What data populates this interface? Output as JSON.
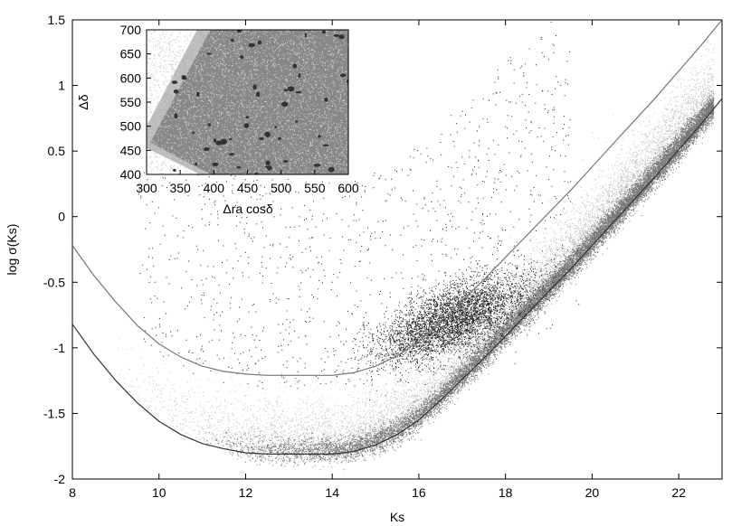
{
  "chart_data": [
    {
      "type": "scatter",
      "xlabel": "Ks",
      "ylabel": "log σ(Ks)",
      "xlim": [
        8,
        23
      ],
      "ylim": [
        -2,
        1.5
      ],
      "x_ticks": [
        8,
        10,
        12,
        14,
        16,
        18,
        20,
        22
      ],
      "y_ticks": [
        -2,
        -1.5,
        -1,
        -0.5,
        0,
        0.5,
        1,
        1.5
      ],
      "x_tick_labels": [
        "8",
        "10",
        "12",
        "14",
        "16",
        "18",
        "20",
        "22"
      ],
      "y_tick_labels": [
        "-2",
        "-1.5",
        "-1",
        "-0.5",
        "0",
        "0.5",
        "1",
        "1.5"
      ],
      "grid": false,
      "legend": "none",
      "curves": [
        {
          "style": "lower fit curve (dark)",
          "color": "#333333",
          "points": [
            [
              8.0,
              -0.82
            ],
            [
              8.5,
              -1.05
            ],
            [
              9.0,
              -1.25
            ],
            [
              9.5,
              -1.42
            ],
            [
              10.0,
              -1.56
            ],
            [
              10.5,
              -1.66
            ],
            [
              11.0,
              -1.73
            ],
            [
              11.5,
              -1.77
            ],
            [
              12.0,
              -1.8
            ],
            [
              12.5,
              -1.81
            ],
            [
              13.0,
              -1.81
            ],
            [
              13.5,
              -1.81
            ],
            [
              14.0,
              -1.81
            ],
            [
              14.5,
              -1.79
            ],
            [
              15.0,
              -1.74
            ],
            [
              15.5,
              -1.66
            ],
            [
              16.0,
              -1.55
            ],
            [
              16.5,
              -1.4
            ],
            [
              17.0,
              -1.24
            ],
            [
              17.5,
              -1.08
            ],
            [
              18.0,
              -0.91
            ],
            [
              18.5,
              -0.74
            ],
            [
              19.0,
              -0.57
            ],
            [
              19.5,
              -0.4
            ],
            [
              20.0,
              -0.22
            ],
            [
              20.5,
              -0.04
            ],
            [
              21.0,
              0.14
            ],
            [
              21.5,
              0.32
            ],
            [
              22.0,
              0.51
            ],
            [
              22.5,
              0.7
            ],
            [
              23.0,
              0.9
            ]
          ]
        },
        {
          "style": "upper fit curve (grey)",
          "color": "#777777",
          "points": [
            [
              8.0,
              -0.22
            ],
            [
              8.5,
              -0.45
            ],
            [
              9.0,
              -0.65
            ],
            [
              9.5,
              -0.83
            ],
            [
              10.0,
              -0.97
            ],
            [
              10.5,
              -1.07
            ],
            [
              11.0,
              -1.14
            ],
            [
              11.5,
              -1.18
            ],
            [
              12.0,
              -1.2
            ],
            [
              12.5,
              -1.21
            ],
            [
              13.0,
              -1.21
            ],
            [
              13.5,
              -1.21
            ],
            [
              14.0,
              -1.21
            ],
            [
              14.5,
              -1.19
            ],
            [
              15.0,
              -1.14
            ],
            [
              15.5,
              -1.06
            ],
            [
              16.0,
              -0.95
            ],
            [
              16.5,
              -0.8
            ],
            [
              17.0,
              -0.64
            ],
            [
              17.5,
              -0.48
            ],
            [
              18.0,
              -0.31
            ],
            [
              18.5,
              -0.14
            ],
            [
              19.0,
              0.03
            ],
            [
              19.5,
              0.2
            ],
            [
              20.0,
              0.38
            ],
            [
              20.5,
              0.56
            ],
            [
              21.0,
              0.74
            ],
            [
              21.5,
              0.92
            ],
            [
              22.0,
              1.11
            ],
            [
              22.5,
              1.3
            ],
            [
              23.0,
              1.5
            ]
          ]
        }
      ],
      "point_clouds": [
        {
          "name": "light",
          "color": "#c8c8c8",
          "x_range": [
            9,
            22.8
          ],
          "offset_from_lower_curve": [
            0.0,
            0.35
          ],
          "density": "high"
        },
        {
          "name": "medium",
          "color": "#777777",
          "x_range": [
            11,
            22.8
          ],
          "offset_from_lower_curve": [
            -0.08,
            0.12
          ],
          "density": "very high"
        },
        {
          "name": "dark",
          "color": "#222222",
          "x_range": [
            9,
            20
          ],
          "concentration": {
            "x": 17,
            "y": -0.75
          },
          "density": "high"
        }
      ]
    },
    {
      "type": "scatter",
      "role": "inset",
      "xlabel": "Δra cosδ",
      "ylabel": "Δδ",
      "xlim": [
        300,
        600
      ],
      "ylim": [
        400,
        700
      ],
      "x_ticks": [
        300,
        350,
        400,
        450,
        500,
        550,
        600
      ],
      "y_ticks": [
        400,
        450,
        500,
        550,
        600,
        650,
        700
      ],
      "x_tick_labels": [
        "300",
        "350",
        "400",
        "450",
        "500",
        "550",
        "600"
      ],
      "y_tick_labels": [
        "400",
        "450",
        "500",
        "550",
        "600",
        "650",
        "700"
      ],
      "field_colors": {
        "background": "#888888",
        "light_wedge": "#bbbbbb",
        "speckle": "#d0d0d0",
        "dark_spots": "#333333"
      }
    }
  ]
}
